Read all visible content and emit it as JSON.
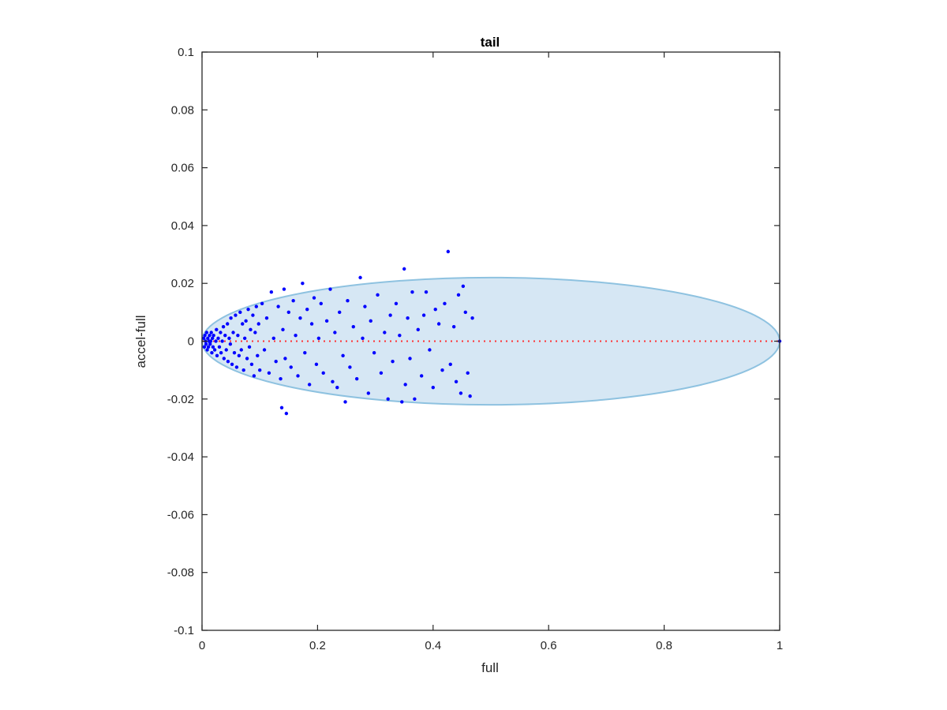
{
  "chart_data": {
    "type": "scatter",
    "title": "tail",
    "xlabel": "full",
    "ylabel": "accel-full",
    "xlim": [
      0,
      1
    ],
    "ylim": [
      -0.1,
      0.1
    ],
    "xticks": [
      0,
      0.2,
      0.4,
      0.6,
      0.8,
      1
    ],
    "xtick_labels": [
      "0",
      "0.2",
      "0.4",
      "0.6",
      "0.8",
      "1"
    ],
    "yticks": [
      -0.1,
      -0.08,
      -0.06,
      -0.04,
      -0.02,
      0,
      0.02,
      0.04,
      0.06,
      0.08,
      0.1
    ],
    "ytick_labels": [
      "-0.1",
      "-0.08",
      "-0.06",
      "-0.04",
      "-0.02",
      "0",
      "0.02",
      "0.04",
      "0.06",
      "0.08",
      "0.1"
    ],
    "grid": false,
    "colors": {
      "points": "#0000ff",
      "ellipse_fill": "#d6e7f4",
      "ellipse_stroke": "#8ec2e0",
      "reference_line": "#ff3333",
      "axes": "#262626"
    },
    "ellipse": {
      "center": [
        0.5,
        0
      ],
      "semi_axes": [
        0.5,
        0.022
      ]
    },
    "reference_line": {
      "y": 0,
      "x_range": [
        0,
        1
      ],
      "style": "dotted"
    },
    "series": [
      {
        "points": [
          [
            0.003,
            0.001
          ],
          [
            0.004,
            -0.002
          ],
          [
            0.005,
            0.002
          ],
          [
            0.006,
            0.0
          ],
          [
            0.007,
            -0.001
          ],
          [
            0.008,
            0.003
          ],
          [
            0.009,
            -0.003
          ],
          [
            0.01,
            0.001
          ],
          [
            0.011,
            -0.002
          ],
          [
            0.012,
            0.0
          ],
          [
            0.013,
            0.002
          ],
          [
            0.014,
            -0.001
          ],
          [
            0.015,
            0.0
          ],
          [
            0.016,
            0.003
          ],
          [
            0.017,
            -0.004
          ],
          [
            0.018,
            0.001
          ],
          [
            0.019,
            -0.002
          ],
          [
            0.02,
            0.002
          ],
          [
            0.022,
            -0.003
          ],
          [
            0.024,
            0.0
          ],
          [
            0.025,
            0.004
          ],
          [
            0.026,
            -0.005
          ],
          [
            0.028,
            0.001
          ],
          [
            0.03,
            -0.002
          ],
          [
            0.032,
            0.003
          ],
          [
            0.033,
            -0.004
          ],
          [
            0.035,
            0.0
          ],
          [
            0.037,
            0.005
          ],
          [
            0.038,
            -0.006
          ],
          [
            0.04,
            0.002
          ],
          [
            0.042,
            -0.003
          ],
          [
            0.044,
            0.006
          ],
          [
            0.045,
            -0.007
          ],
          [
            0.047,
            0.001
          ],
          [
            0.049,
            -0.001
          ],
          [
            0.05,
            0.008
          ],
          [
            0.052,
            -0.008
          ],
          [
            0.054,
            0.003
          ],
          [
            0.056,
            -0.004
          ],
          [
            0.058,
            0.009
          ],
          [
            0.06,
            -0.009
          ],
          [
            0.062,
            0.002
          ],
          [
            0.064,
            -0.005
          ],
          [
            0.066,
            0.01
          ],
          [
            0.068,
            -0.003
          ],
          [
            0.07,
            0.006
          ],
          [
            0.072,
            -0.01
          ],
          [
            0.074,
            0.001
          ],
          [
            0.076,
            0.007
          ],
          [
            0.078,
            -0.006
          ],
          [
            0.08,
            0.011
          ],
          [
            0.082,
            -0.002
          ],
          [
            0.084,
            0.004
          ],
          [
            0.086,
            -0.008
          ],
          [
            0.088,
            0.009
          ],
          [
            0.09,
            -0.012
          ],
          [
            0.092,
            0.003
          ],
          [
            0.094,
            0.012
          ],
          [
            0.096,
            -0.005
          ],
          [
            0.098,
            0.006
          ],
          [
            0.1,
            -0.01
          ],
          [
            0.104,
            0.013
          ],
          [
            0.108,
            -0.003
          ],
          [
            0.112,
            0.008
          ],
          [
            0.116,
            -0.011
          ],
          [
            0.12,
            0.017
          ],
          [
            0.124,
            0.001
          ],
          [
            0.128,
            -0.007
          ],
          [
            0.132,
            0.012
          ],
          [
            0.136,
            -0.013
          ],
          [
            0.138,
            -0.023
          ],
          [
            0.14,
            0.004
          ],
          [
            0.142,
            0.018
          ],
          [
            0.144,
            -0.006
          ],
          [
            0.146,
            -0.025
          ],
          [
            0.15,
            0.01
          ],
          [
            0.154,
            -0.009
          ],
          [
            0.158,
            0.014
          ],
          [
            0.162,
            0.002
          ],
          [
            0.166,
            -0.012
          ],
          [
            0.17,
            0.008
          ],
          [
            0.174,
            0.02
          ],
          [
            0.178,
            -0.004
          ],
          [
            0.182,
            0.011
          ],
          [
            0.186,
            -0.015
          ],
          [
            0.19,
            0.006
          ],
          [
            0.194,
            0.015
          ],
          [
            0.198,
            -0.008
          ],
          [
            0.202,
            0.001
          ],
          [
            0.206,
            0.013
          ],
          [
            0.21,
            -0.011
          ],
          [
            0.216,
            0.007
          ],
          [
            0.222,
            0.018
          ],
          [
            0.226,
            -0.014
          ],
          [
            0.23,
            0.003
          ],
          [
            0.234,
            -0.016
          ],
          [
            0.238,
            0.01
          ],
          [
            0.244,
            -0.005
          ],
          [
            0.248,
            -0.021
          ],
          [
            0.252,
            0.014
          ],
          [
            0.256,
            -0.009
          ],
          [
            0.262,
            0.005
          ],
          [
            0.268,
            -0.013
          ],
          [
            0.274,
            0.022
          ],
          [
            0.278,
            0.001
          ],
          [
            0.282,
            0.012
          ],
          [
            0.288,
            -0.018
          ],
          [
            0.292,
            0.007
          ],
          [
            0.298,
            -0.004
          ],
          [
            0.304,
            0.016
          ],
          [
            0.31,
            -0.011
          ],
          [
            0.316,
            0.003
          ],
          [
            0.322,
            -0.02
          ],
          [
            0.326,
            0.009
          ],
          [
            0.33,
            -0.007
          ],
          [
            0.336,
            0.013
          ],
          [
            0.342,
            0.002
          ],
          [
            0.346,
            -0.021
          ],
          [
            0.35,
            0.025
          ],
          [
            0.352,
            -0.015
          ],
          [
            0.356,
            0.008
          ],
          [
            0.36,
            -0.006
          ],
          [
            0.364,
            0.017
          ],
          [
            0.368,
            -0.02
          ],
          [
            0.374,
            0.004
          ],
          [
            0.38,
            -0.012
          ],
          [
            0.384,
            0.009
          ],
          [
            0.388,
            0.017
          ],
          [
            0.394,
            -0.003
          ],
          [
            0.4,
            -0.016
          ],
          [
            0.404,
            0.011
          ],
          [
            0.41,
            0.006
          ],
          [
            0.416,
            -0.01
          ],
          [
            0.42,
            0.013
          ],
          [
            0.426,
            0.031
          ],
          [
            0.43,
            -0.008
          ],
          [
            0.436,
            0.005
          ],
          [
            0.44,
            -0.014
          ],
          [
            0.444,
            0.016
          ],
          [
            0.448,
            -0.018
          ],
          [
            0.452,
            0.019
          ],
          [
            0.456,
            0.01
          ],
          [
            0.46,
            -0.011
          ],
          [
            0.464,
            -0.019
          ],
          [
            0.468,
            0.008
          ],
          [
            1.0,
            0.0
          ]
        ]
      }
    ]
  }
}
